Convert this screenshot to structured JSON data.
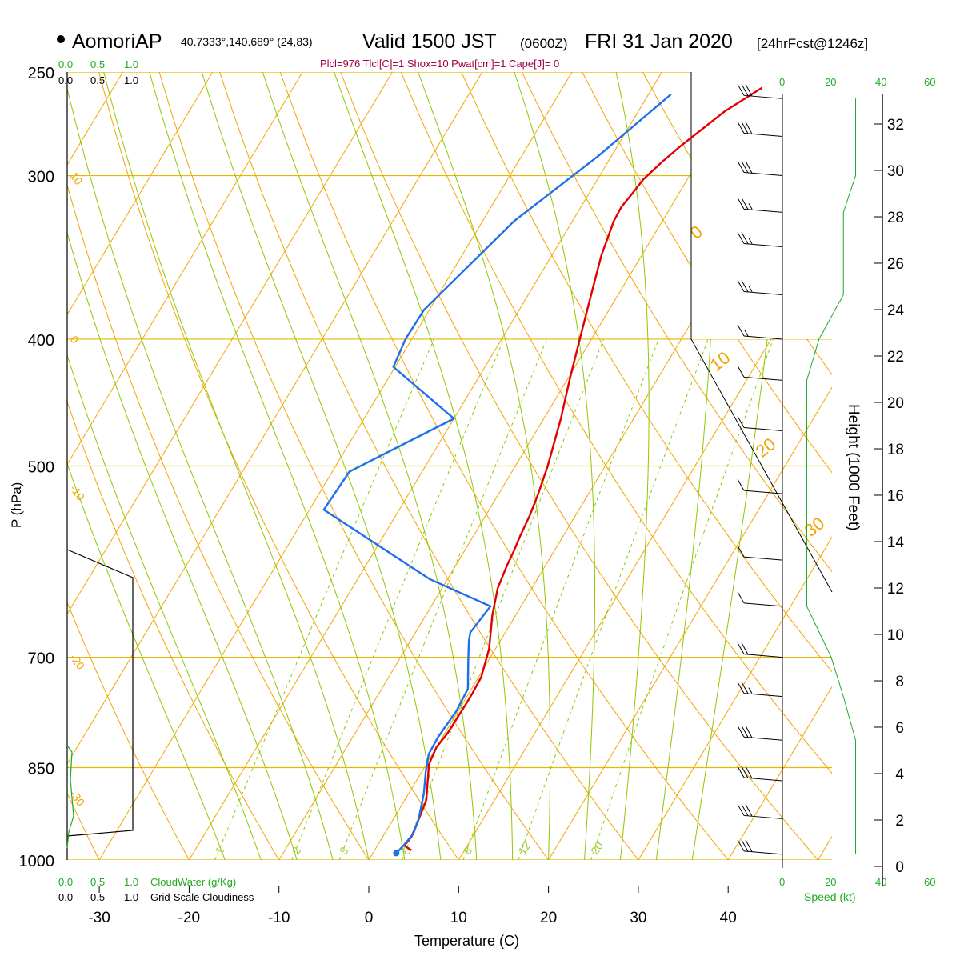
{
  "header": {
    "station": "AomoriAP",
    "coords": "40.7333°,140.689° (24,83)",
    "valid": "Valid 1500 JST",
    "utc": "(0600Z)",
    "date": "FRI 31 Jan 2020",
    "forecast": "[24hrFcst@1246z]",
    "indices": "Plcl=976 Tlcl[C]=1 Shox=10 Pwat[cm]=1 Cape[J]= 0"
  },
  "chart_data": {
    "type": "line",
    "xlabel": "Temperature (C)",
    "ylabel": "P (hPa)",
    "y2label": "Height (1000 Feet)",
    "xlim": [
      -34,
      36
    ],
    "ylim": [
      1000,
      250
    ],
    "x_ticks": [
      -30,
      -20,
      -10,
      0,
      10,
      20,
      30,
      40
    ],
    "pressure_ticks": [
      250,
      300,
      400,
      500,
      700,
      850,
      1000
    ],
    "height_ticks": [
      0,
      2,
      4,
      6,
      8,
      10,
      12,
      14,
      16,
      18,
      20,
      22,
      24,
      26,
      28,
      30,
      32
    ],
    "series": [
      {
        "role": "temperature",
        "color": "#e00000",
        "points": [
          [
            4.1,
            983
          ],
          [
            3.0,
            975
          ],
          [
            3.2,
            960
          ],
          [
            2.9,
            935
          ],
          [
            2.4,
            900
          ],
          [
            0.3,
            845
          ],
          [
            0.0,
            820
          ],
          [
            0.3,
            800
          ],
          [
            0.4,
            760
          ],
          [
            0.4,
            745
          ],
          [
            0.3,
            725
          ],
          [
            -0.7,
            690
          ],
          [
            -2.6,
            650
          ],
          [
            -3.8,
            620
          ],
          [
            -4.1,
            605
          ],
          [
            -4.3,
            595
          ],
          [
            -4.5,
            580
          ],
          [
            -4.8,
            565
          ],
          [
            -5.1,
            545
          ],
          [
            -5.6,
            525
          ],
          [
            -6.4,
            500
          ],
          [
            -8.1,
            460
          ],
          [
            -9.7,
            430
          ],
          [
            -11.3,
            400
          ],
          [
            -13.0,
            370
          ],
          [
            -14.5,
            345
          ],
          [
            -15.4,
            325
          ],
          [
            -15.5,
            317
          ],
          [
            -15.2,
            310
          ],
          [
            -14.9,
            302
          ],
          [
            -14.0,
            293
          ],
          [
            -13.0,
            285
          ],
          [
            -10.4,
            268
          ],
          [
            -7.8,
            257
          ]
        ]
      },
      {
        "role": "dewpoint",
        "color": "#1f6fe8",
        "points": [
          [
            2.6,
            988
          ],
          [
            2.9,
            975
          ],
          [
            3.2,
            955
          ],
          [
            2.8,
            930
          ],
          [
            1.7,
            890
          ],
          [
            0.4,
            855
          ],
          [
            -0.4,
            830
          ],
          [
            -0.5,
            805
          ],
          [
            -0.2,
            770
          ],
          [
            -0.4,
            740
          ],
          [
            -2.2,
            705
          ],
          [
            -3.5,
            680
          ],
          [
            -3.9,
            670
          ],
          [
            -3.4,
            640
          ],
          [
            -12.0,
            610
          ],
          [
            -28.4,
            540
          ],
          [
            -28.1,
            505
          ],
          [
            -20.0,
            460
          ],
          [
            -30.2,
            420
          ],
          [
            -30.7,
            400
          ],
          [
            -30.6,
            380
          ],
          [
            -26.5,
            325
          ],
          [
            -21.5,
            290
          ],
          [
            -17.5,
            260
          ]
        ]
      }
    ],
    "wind_profile": [
      {
        "p": 990,
        "speed_kt": 30
      },
      {
        "p": 930,
        "speed_kt": 30
      },
      {
        "p": 870,
        "speed_kt": 30
      },
      {
        "p": 810,
        "speed_kt": 30
      },
      {
        "p": 750,
        "speed_kt": 25
      },
      {
        "p": 700,
        "speed_kt": 20
      },
      {
        "p": 640,
        "speed_kt": 10
      },
      {
        "p": 590,
        "speed_kt": 10
      },
      {
        "p": 525,
        "speed_kt": 10
      },
      {
        "p": 470,
        "speed_kt": 10
      },
      {
        "p": 430,
        "speed_kt": 10
      },
      {
        "p": 400,
        "speed_kt": 15
      },
      {
        "p": 370,
        "speed_kt": 25
      },
      {
        "p": 340,
        "speed_kt": 25
      },
      {
        "p": 320,
        "speed_kt": 25
      },
      {
        "p": 300,
        "speed_kt": 30
      },
      {
        "p": 280,
        "speed_kt": 30
      },
      {
        "p": 262,
        "speed_kt": 30
      }
    ],
    "cloud_panel": {
      "label_cloudwater": "CloudWater (g/Kg)",
      "label_cloudiness": "Grid-Scale Cloudiness",
      "scale_top": [
        "0.0",
        "0.5",
        "1.0"
      ],
      "scale_bottom": [
        "0.0",
        "0.5",
        "1.0"
      ]
    },
    "speed_panel": {
      "label": "Speed (kt)",
      "ticks": [
        "0",
        "20",
        "40",
        "60"
      ]
    },
    "isotherm_labels": [
      "10",
      "0",
      "-10",
      "-20",
      "-30"
    ],
    "dry_adiabat_labels": [
      "0",
      "10",
      "20",
      "30"
    ],
    "mixing_ratio_labels": [
      "1",
      "2",
      "3",
      "5",
      "8",
      "12",
      "20"
    ]
  }
}
